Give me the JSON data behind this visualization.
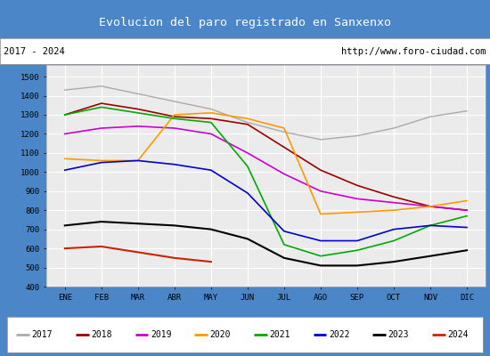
{
  "title": "Evolucion del paro registrado en Sanxenxo",
  "subtitle_left": "2017 - 2024",
  "subtitle_right": "http://www.foro-ciudad.com",
  "title_bg_color": "#4a86c8",
  "title_text_color": "#ffffff",
  "plot_bg_color": "#ebebeb",
  "grid_color": "#ffffff",
  "months": [
    "ENE",
    "FEB",
    "MAR",
    "ABR",
    "MAY",
    "JUN",
    "JUL",
    "AGO",
    "SEP",
    "OCT",
    "NOV",
    "DIC"
  ],
  "ylim": [
    400,
    1560
  ],
  "yticks": [
    400,
    500,
    600,
    700,
    800,
    900,
    1000,
    1100,
    1200,
    1300,
    1400,
    1500
  ],
  "series": {
    "2017": {
      "color": "#aaaaaa",
      "linewidth": 1.0,
      "values": [
        1430,
        1450,
        1410,
        1370,
        1330,
        1260,
        1210,
        1170,
        1190,
        1230,
        1290,
        1320
      ]
    },
    "2018": {
      "color": "#990000",
      "linewidth": 1.2,
      "values": [
        1300,
        1360,
        1330,
        1290,
        1280,
        1250,
        1130,
        1010,
        930,
        870,
        820,
        800
      ]
    },
    "2019": {
      "color": "#cc00cc",
      "linewidth": 1.2,
      "values": [
        1200,
        1230,
        1240,
        1230,
        1200,
        1100,
        990,
        900,
        860,
        840,
        820,
        800
      ]
    },
    "2020": {
      "color": "#ff9900",
      "linewidth": 1.2,
      "values": [
        1070,
        1060,
        1060,
        1300,
        1310,
        1280,
        1230,
        780,
        790,
        800,
        820,
        850
      ]
    },
    "2021": {
      "color": "#00aa00",
      "linewidth": 1.2,
      "values": [
        1300,
        1340,
        1310,
        1280,
        1260,
        1030,
        620,
        560,
        590,
        640,
        720,
        770
      ]
    },
    "2022": {
      "color": "#0000cc",
      "linewidth": 1.2,
      "values": [
        1010,
        1050,
        1060,
        1040,
        1010,
        890,
        690,
        640,
        640,
        700,
        720,
        710
      ]
    },
    "2023": {
      "color": "#000000",
      "linewidth": 1.5,
      "values": [
        720,
        740,
        730,
        720,
        700,
        650,
        550,
        510,
        510,
        530,
        560,
        590
      ]
    },
    "2024": {
      "color": "#cc2200",
      "linewidth": 1.5,
      "values": [
        600,
        610,
        580,
        550,
        530,
        null,
        null,
        null,
        null,
        null,
        null,
        null
      ]
    }
  },
  "legend_order": [
    "2017",
    "2018",
    "2019",
    "2020",
    "2021",
    "2022",
    "2023",
    "2024"
  ]
}
